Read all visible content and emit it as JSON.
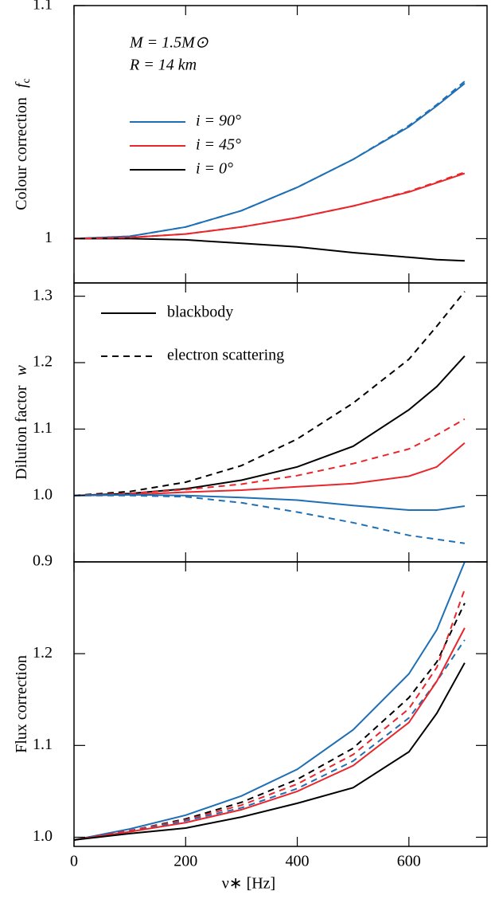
{
  "chart_data": [
    {
      "type": "line",
      "ylabel": "Colour correction",
      "ylabel_symbol": "f",
      "ylabel_subscript": "c",
      "annotations": [
        "M = 1.5M⊙",
        "R = 14 km"
      ],
      "x": [
        0,
        100,
        200,
        300,
        400,
        500,
        600,
        650,
        700
      ],
      "xlim": [
        0,
        740
      ],
      "xticks": [
        0,
        200,
        400,
        600
      ],
      "ylim": [
        0.981,
        1.1
      ],
      "yticks": [
        1.0,
        {
          "value": 1.1,
          "label": "1.1"
        }
      ],
      "series": [
        {
          "name": "i = 90°",
          "color": "#1f6fb5",
          "linestyle": "solid",
          "values": [
            1.0,
            1.001,
            1.005,
            1.012,
            1.022,
            1.034,
            1.048,
            1.057,
            1.0666
          ]
        },
        {
          "name": "i = 45°",
          "color": "#e8262b",
          "linestyle": "solid",
          "values": [
            1.0,
            1.0005,
            1.002,
            1.005,
            1.009,
            1.014,
            1.02,
            1.024,
            1.028
          ]
        },
        {
          "name": "i = 0°",
          "color": "#000000",
          "linestyle": "solid",
          "values": [
            1.0,
            1.0,
            0.9995,
            0.998,
            0.9965,
            0.994,
            0.992,
            0.991,
            0.9905
          ]
        },
        {
          "color": "#1f6fb5",
          "linestyle": "dashed",
          "values": [
            1.0,
            1.001,
            1.005,
            1.012,
            1.022,
            1.034,
            1.0485,
            1.0575,
            1.0675
          ]
        },
        {
          "color": "#e8262b",
          "linestyle": "dashed",
          "values": [
            1.0,
            1.0005,
            1.002,
            1.005,
            1.009,
            1.014,
            1.0203,
            1.0243,
            1.0285
          ]
        }
      ]
    },
    {
      "type": "line",
      "ylabel": "Dilution factor",
      "ylabel_symbol": "w",
      "legend": [
        {
          "label": "blackbody",
          "linestyle": "solid"
        },
        {
          "label": "electron scattering",
          "linestyle": "dashed"
        }
      ],
      "x": [
        0,
        100,
        200,
        300,
        400,
        500,
        600,
        650,
        700
      ],
      "xlim": [
        0,
        740
      ],
      "xticks": [
        0,
        200,
        400,
        600
      ],
      "ylim": [
        0.9,
        1.32
      ],
      "yticks": [
        {
          "value": 0.9,
          "label": "0.9"
        },
        {
          "value": 1.0,
          "label": "1.0"
        },
        1.1,
        1.2,
        1.3
      ],
      "series": [
        {
          "color": "#000000",
          "linestyle": "solid",
          "values": [
            1.0,
            1.003,
            1.01,
            1.023,
            1.043,
            1.074,
            1.129,
            1.164,
            1.21
          ]
        },
        {
          "color": "#000000",
          "linestyle": "dashed",
          "values": [
            1.0,
            1.006,
            1.02,
            1.045,
            1.085,
            1.139,
            1.205,
            1.255,
            1.307
          ]
        },
        {
          "color": "#e8262b",
          "linestyle": "solid",
          "values": [
            1.0,
            1.001,
            1.005,
            1.008,
            1.013,
            1.018,
            1.029,
            1.043,
            1.079
          ]
        },
        {
          "color": "#e8262b",
          "linestyle": "dashed",
          "values": [
            1.0,
            1.003,
            1.009,
            1.017,
            1.03,
            1.048,
            1.07,
            1.091,
            1.115
          ]
        },
        {
          "color": "#1f6fb5",
          "linestyle": "solid",
          "values": [
            1.0,
            1.001,
            1.0,
            0.997,
            0.993,
            0.985,
            0.978,
            0.978,
            0.984
          ]
        },
        {
          "color": "#1f6fb5",
          "linestyle": "dashed",
          "values": [
            1.0,
            1.0,
            0.998,
            0.989,
            0.975,
            0.959,
            0.94,
            0.934,
            0.928
          ]
        }
      ]
    },
    {
      "type": "line",
      "ylabel": "Flux correction",
      "xlabel": "ν∗ [Hz]",
      "x": [
        0,
        100,
        200,
        300,
        400,
        500,
        600,
        650,
        700
      ],
      "xlim": [
        0,
        740
      ],
      "xticks": [
        0,
        200,
        400,
        600
      ],
      "ylim": [
        0.99,
        1.3
      ],
      "yticks": [
        {
          "value": 1.0,
          "label": "1.0"
        },
        1.1,
        1.2
      ],
      "series": [
        {
          "color": "#1f6fb5",
          "linestyle": "solid",
          "values": [
            0.997,
            1.009,
            1.024,
            1.045,
            1.074,
            1.117,
            1.178,
            1.226,
            1.3
          ]
        },
        {
          "color": "#000000",
          "linestyle": "dashed",
          "values": [
            0.997,
            1.007,
            1.02,
            1.038,
            1.063,
            1.097,
            1.152,
            1.191,
            1.255
          ]
        },
        {
          "color": "#e8262b",
          "linestyle": "dashed",
          "values": [
            0.997,
            1.007,
            1.019,
            1.035,
            1.058,
            1.09,
            1.14,
            1.185,
            1.27
          ]
        },
        {
          "color": "#1f6fb5",
          "linestyle": "dashed",
          "values": [
            0.997,
            1.006,
            1.018,
            1.032,
            1.053,
            1.083,
            1.13,
            1.17,
            1.215
          ]
        },
        {
          "color": "#e8262b",
          "linestyle": "solid",
          "values": [
            0.997,
            1.006,
            1.016,
            1.03,
            1.05,
            1.078,
            1.125,
            1.17,
            1.228
          ]
        },
        {
          "color": "#000000",
          "linestyle": "solid",
          "values": [
            0.997,
            1.004,
            1.01,
            1.022,
            1.037,
            1.054,
            1.093,
            1.135,
            1.19
          ]
        }
      ]
    }
  ]
}
